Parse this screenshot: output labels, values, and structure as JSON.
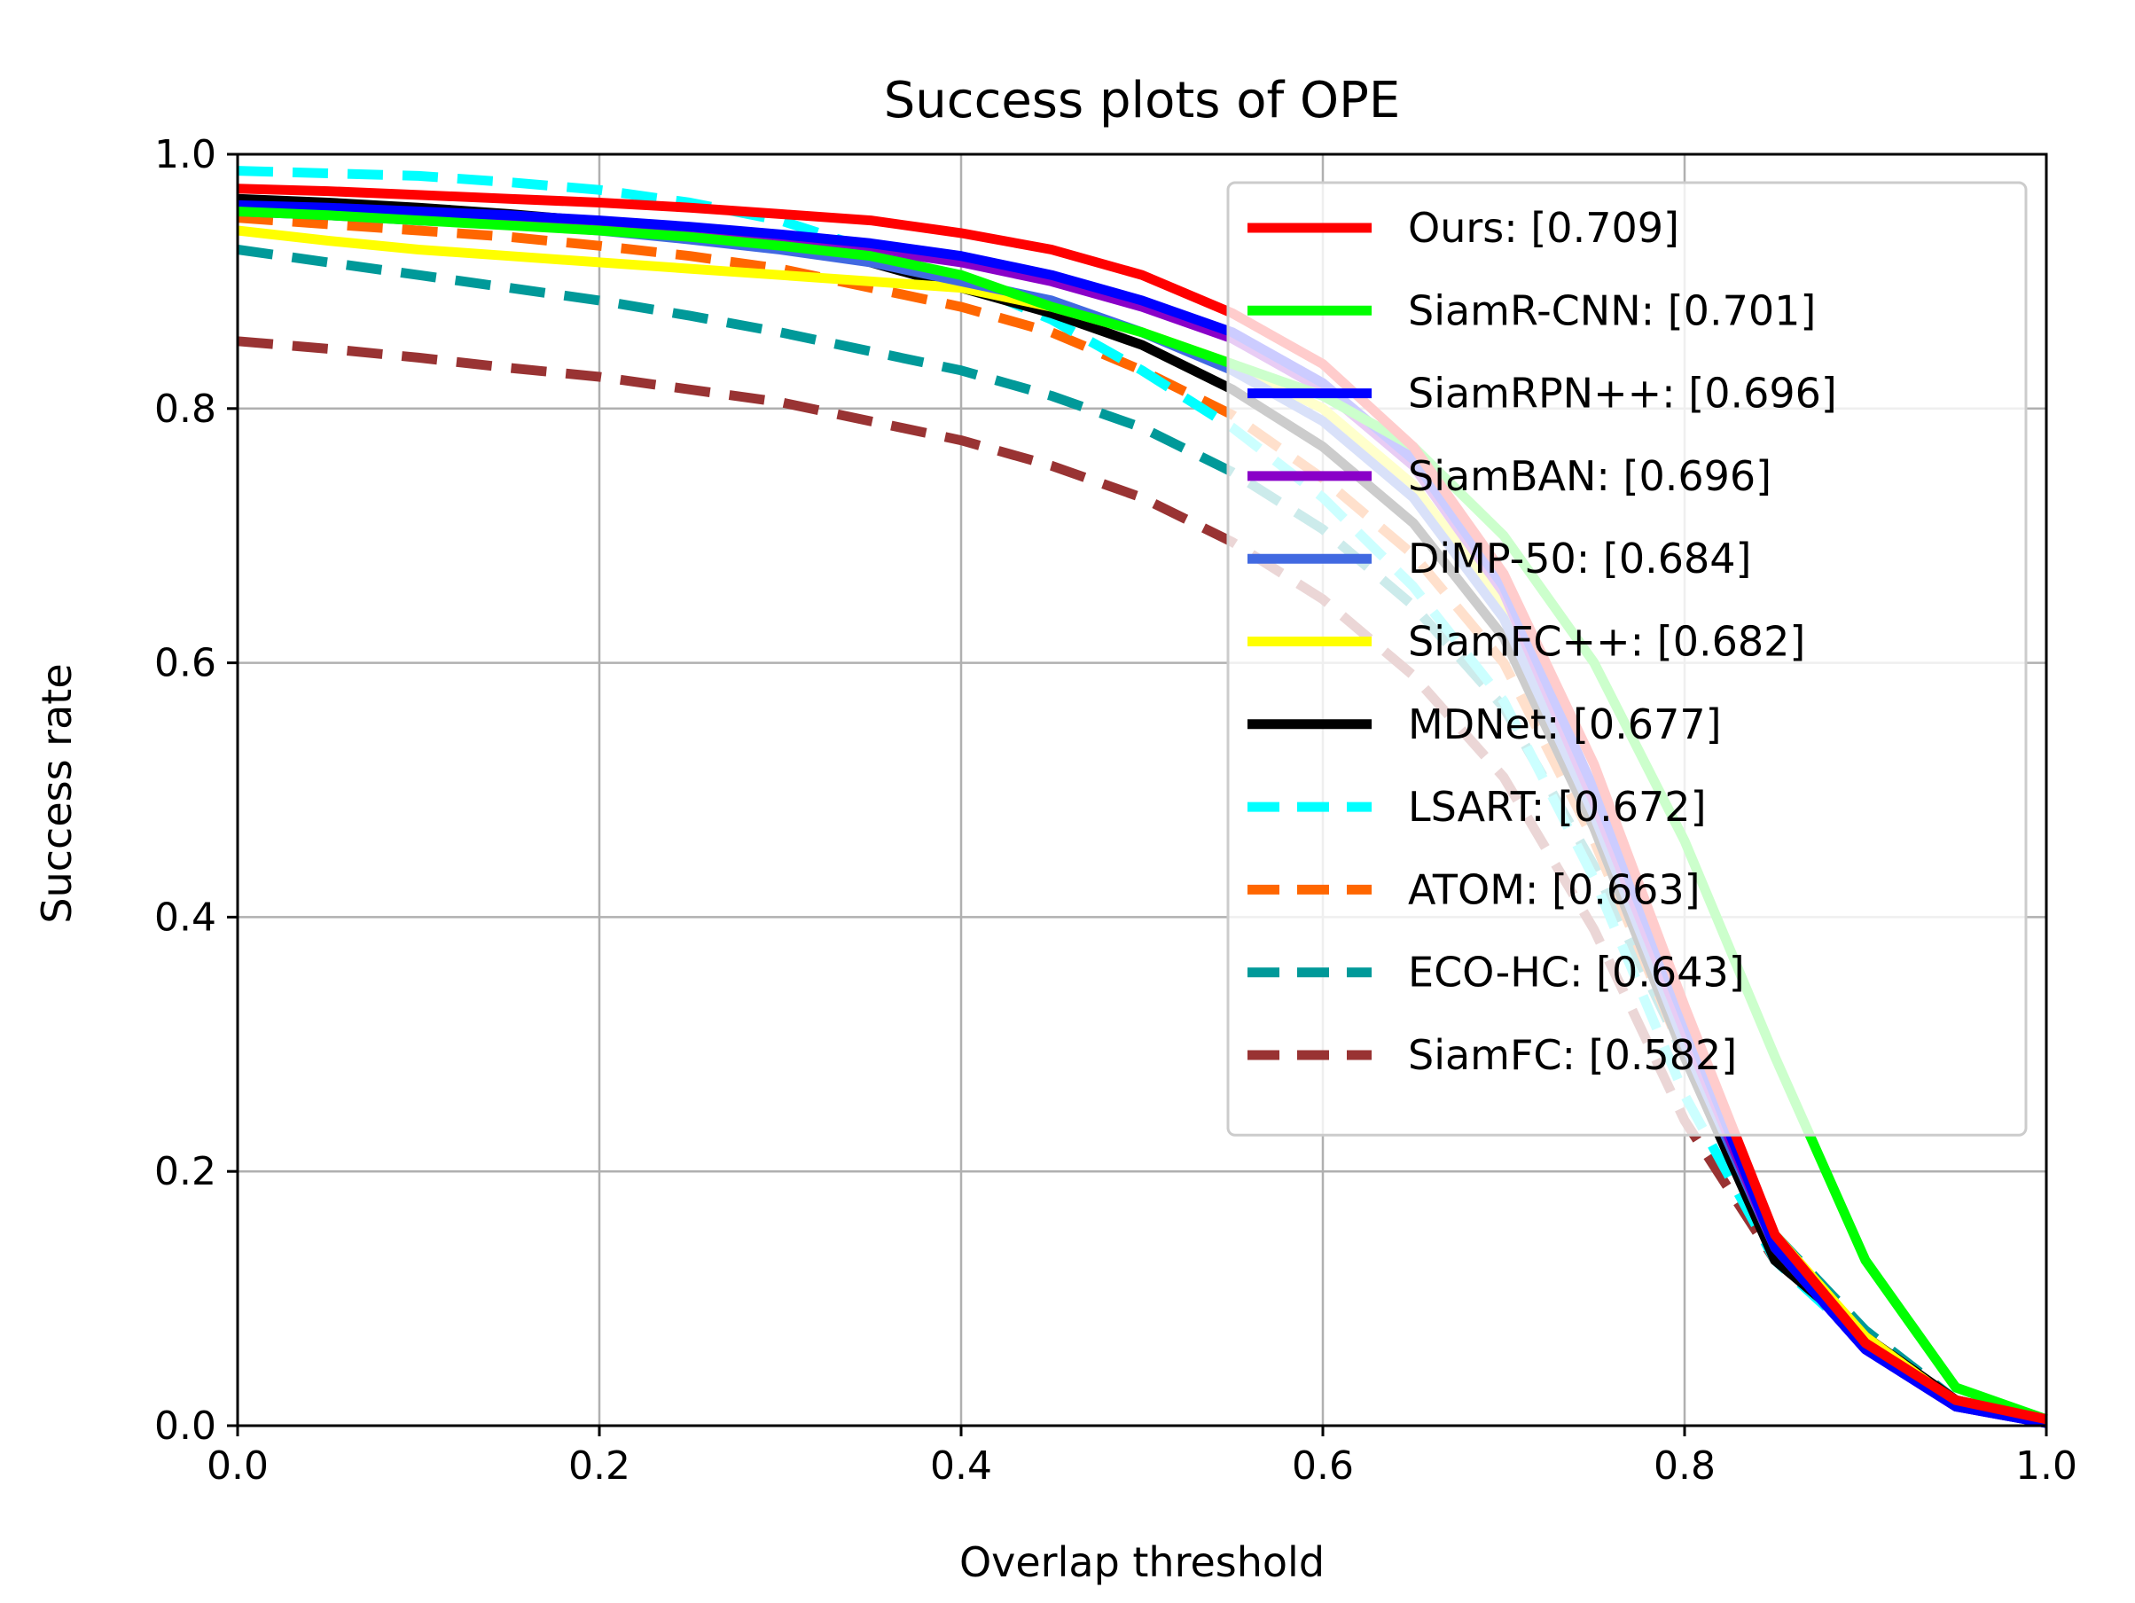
{
  "chart_data": {
    "type": "line",
    "title": "Success plots of OPE",
    "xlabel": "Overlap threshold",
    "ylabel": "Success rate",
    "xlim": [
      0.0,
      1.0
    ],
    "ylim": [
      0.0,
      1.0
    ],
    "xticks": [
      "0.0",
      "0.2",
      "0.4",
      "0.6",
      "0.8",
      "1.0"
    ],
    "yticks": [
      "0.0",
      "0.2",
      "0.4",
      "0.6",
      "0.8",
      "1.0"
    ],
    "grid": true,
    "legend_position": "upper-right",
    "x": [
      0,
      0.05,
      0.1,
      0.15,
      0.2,
      0.25,
      0.3,
      0.35,
      0.4,
      0.45,
      0.5,
      0.55,
      0.6,
      0.65,
      0.7,
      0.75,
      0.8,
      0.85,
      0.9,
      0.95,
      1.0
    ],
    "series": [
      {
        "name": "Ours",
        "label": "Ours: [0.709]",
        "color": "#ff0000",
        "dash": "solid",
        "values": [
          0.973,
          0.971,
          0.968,
          0.965,
          0.962,
          0.958,
          0.953,
          0.948,
          0.938,
          0.925,
          0.905,
          0.875,
          0.835,
          0.77,
          0.67,
          0.52,
          0.33,
          0.15,
          0.065,
          0.02,
          0.005
        ]
      },
      {
        "name": "SiamR-CNN",
        "label": "SiamR-CNN: [0.701]",
        "color": "#00ff00",
        "dash": "solid",
        "values": [
          0.955,
          0.952,
          0.948,
          0.944,
          0.94,
          0.935,
          0.928,
          0.92,
          0.905,
          0.88,
          0.86,
          0.835,
          0.81,
          0.77,
          0.7,
          0.6,
          0.46,
          0.29,
          0.13,
          0.03,
          0.005
        ]
      },
      {
        "name": "SiamRPN++",
        "label": "SiamRPN++: [0.696]",
        "color": "#0000ff",
        "dash": "solid",
        "values": [
          0.96,
          0.958,
          0.955,
          0.952,
          0.948,
          0.943,
          0.937,
          0.93,
          0.92,
          0.905,
          0.885,
          0.86,
          0.82,
          0.76,
          0.66,
          0.5,
          0.32,
          0.14,
          0.06,
          0.015,
          0.002
        ]
      },
      {
        "name": "SiamBAN",
        "label": "SiamBAN: [0.696]",
        "color": "#8a00c8",
        "dash": "solid",
        "values": [
          0.958,
          0.955,
          0.952,
          0.948,
          0.945,
          0.94,
          0.934,
          0.925,
          0.915,
          0.9,
          0.88,
          0.855,
          0.815,
          0.755,
          0.655,
          0.49,
          0.31,
          0.14,
          0.06,
          0.015,
          0.002
        ]
      },
      {
        "name": "DiMP-50",
        "label": "DiMP-50: [0.684]",
        "color": "#4169e1",
        "dash": "solid",
        "values": [
          0.955,
          0.952,
          0.948,
          0.945,
          0.94,
          0.933,
          0.925,
          0.915,
          0.9,
          0.885,
          0.86,
          0.83,
          0.79,
          0.73,
          0.635,
          0.48,
          0.3,
          0.14,
          0.06,
          0.015,
          0.002
        ]
      },
      {
        "name": "SiamFC++",
        "label": "SiamFC++: [0.682]",
        "color": "#ffff00",
        "dash": "solid",
        "values": [
          0.94,
          0.932,
          0.925,
          0.92,
          0.915,
          0.91,
          0.905,
          0.9,
          0.895,
          0.88,
          0.86,
          0.835,
          0.8,
          0.74,
          0.645,
          0.5,
          0.32,
          0.15,
          0.07,
          0.018,
          0.002
        ]
      },
      {
        "name": "MDNet",
        "label": "MDNet: [0.677]",
        "color": "#000000",
        "dash": "solid",
        "values": [
          0.965,
          0.962,
          0.958,
          0.953,
          0.947,
          0.94,
          0.93,
          0.915,
          0.895,
          0.875,
          0.85,
          0.815,
          0.77,
          0.71,
          0.62,
          0.47,
          0.29,
          0.13,
          0.07,
          0.02,
          0.005
        ]
      },
      {
        "name": "LSART",
        "label": "LSART: [0.672]",
        "color": "#00ffff",
        "dash": "dashed",
        "values": [
          0.987,
          0.985,
          0.983,
          0.978,
          0.972,
          0.962,
          0.948,
          0.925,
          0.9,
          0.87,
          0.83,
          0.785,
          0.73,
          0.66,
          0.57,
          0.43,
          0.26,
          0.13,
          0.065,
          0.018,
          0.002
        ]
      },
      {
        "name": "ATOM",
        "label": "ATOM: [0.663]",
        "color": "#ff6600",
        "dash": "dashed",
        "values": [
          0.95,
          0.945,
          0.94,
          0.935,
          0.928,
          0.92,
          0.91,
          0.895,
          0.88,
          0.86,
          0.83,
          0.795,
          0.745,
          0.685,
          0.6,
          0.46,
          0.29,
          0.14,
          0.07,
          0.018,
          0.002
        ]
      },
      {
        "name": "ECO-HC",
        "label": "ECO-HC: [0.643]",
        "color": "#009999",
        "dash": "dashed",
        "values": [
          0.925,
          0.915,
          0.905,
          0.895,
          0.885,
          0.873,
          0.86,
          0.845,
          0.83,
          0.81,
          0.785,
          0.75,
          0.705,
          0.645,
          0.565,
          0.44,
          0.29,
          0.15,
          0.075,
          0.02,
          0.003
        ]
      },
      {
        "name": "SiamFC",
        "label": "SiamFC: [0.582]",
        "color": "#993333",
        "dash": "dashed",
        "values": [
          0.853,
          0.847,
          0.84,
          0.832,
          0.825,
          0.815,
          0.805,
          0.79,
          0.775,
          0.755,
          0.73,
          0.695,
          0.65,
          0.59,
          0.51,
          0.39,
          0.24,
          0.13,
          0.07,
          0.02,
          0.003
        ]
      }
    ]
  }
}
